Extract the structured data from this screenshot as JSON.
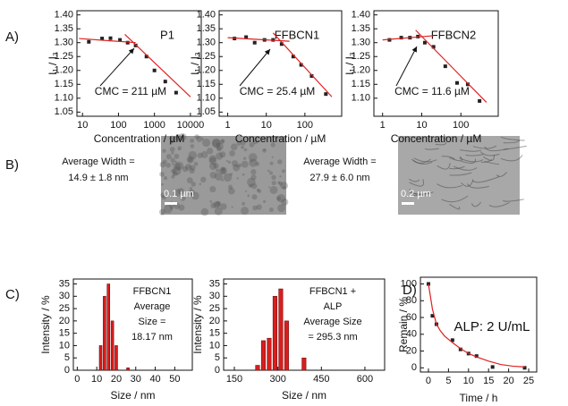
{
  "panel_labels": [
    "A)",
    "B)",
    "C)",
    "D)"
  ],
  "panel_b": {
    "items": [
      {
        "caption": [
          "Average Width =",
          "14.9 ± 1.8 nm"
        ],
        "scale_bar": "0.1 µm"
      },
      {
        "caption": [
          "Average Width =",
          "27.9 ± 6.0 nm"
        ],
        "scale_bar": "0.2 µm"
      }
    ]
  },
  "chart_data": [
    {
      "type": "scatter",
      "xscale": "log",
      "xlim": [
        7,
        20000
      ],
      "ylim": [
        1.035,
        1.415
      ],
      "xticks": [
        10,
        100,
        1000,
        10000
      ],
      "yticks": [
        1.05,
        {
          "value": 1.1,
          "label": "1.10"
        },
        1.15,
        {
          "value": 1.2,
          "label": "1.20"
        },
        1.25,
        {
          "value": 1.3,
          "label": "1.30"
        },
        1.35,
        {
          "value": 1.4,
          "label": "1.40"
        }
      ],
      "xlabel": "Concentration / µM",
      "ylabel": "I₁ / I₃",
      "annotations": [
        "P1",
        "CMC = 211 µM"
      ],
      "series": [
        {
          "style": "markers",
          "color": "#222222",
          "x": [
            15,
            35,
            60,
            110,
            180,
            300,
            600,
            1000,
            2000,
            4000
          ],
          "values": [
            1.303,
            1.315,
            1.316,
            1.31,
            1.3,
            1.29,
            1.25,
            1.2,
            1.16,
            1.12
          ]
        },
        {
          "style": "line",
          "color": "#e02020",
          "x": [
            8,
            300
          ],
          "values": [
            1.315,
            1.3
          ]
        },
        {
          "style": "line",
          "color": "#e02020",
          "x": [
            150,
            10000
          ],
          "values": [
            1.33,
            1.105
          ]
        }
      ]
    },
    {
      "type": "scatter",
      "xscale": "log",
      "xlim": [
        0.6,
        900
      ],
      "ylim": [
        1.035,
        1.415
      ],
      "xticks": [
        1,
        10,
        100
      ],
      "yticks": [
        1.05,
        {
          "value": 1.1,
          "label": "1.10"
        },
        1.15,
        {
          "value": 1.2,
          "label": "1.20"
        },
        1.25,
        {
          "value": 1.3,
          "label": "1.30"
        },
        1.35,
        {
          "value": 1.4,
          "label": "1.40"
        }
      ],
      "xlabel": "Concentration / µM",
      "ylabel": "I₁ / I₃",
      "annotations": [
        "FFBCN1",
        "CMC = 25.4 µM"
      ],
      "series": [
        {
          "style": "markers",
          "color": "#222222",
          "x": [
            1.5,
            3,
            5,
            9,
            15,
            25,
            50,
            80,
            150,
            350
          ],
          "values": [
            1.315,
            1.32,
            1.3,
            1.31,
            1.31,
            1.295,
            1.25,
            1.22,
            1.18,
            1.115
          ]
        },
        {
          "style": "line",
          "color": "#e02020",
          "x": [
            1,
            40
          ],
          "values": [
            1.318,
            1.305
          ]
        },
        {
          "style": "line",
          "color": "#e02020",
          "x": [
            15,
            500
          ],
          "values": [
            1.335,
            1.105
          ]
        }
      ]
    },
    {
      "type": "scatter",
      "xscale": "log",
      "xlim": [
        0.6,
        900
      ],
      "ylim": [
        1.035,
        1.415
      ],
      "xticks": [
        1,
        10,
        100
      ],
      "yticks": [
        {
          "value": 1.1,
          "label": "1.10"
        },
        1.15,
        {
          "value": 1.2,
          "label": "1.20"
        },
        1.25,
        {
          "value": 1.3,
          "label": "1.30"
        },
        1.35,
        {
          "value": 1.4,
          "label": "1.40"
        }
      ],
      "xlabel": "Concentration / µM",
      "ylabel": "I₁ / I₃",
      "annotations": [
        "FFBCN2",
        "CMC = 11.6 µM"
      ],
      "series": [
        {
          "style": "markers",
          "color": "#222222",
          "x": [
            1.5,
            3,
            5,
            8,
            12,
            20,
            40,
            80,
            150,
            300
          ],
          "values": [
            1.31,
            1.318,
            1.318,
            1.322,
            1.3,
            1.285,
            1.215,
            1.155,
            1.15,
            1.09
          ]
        },
        {
          "style": "line",
          "color": "#e02020",
          "x": [
            1,
            20
          ],
          "values": [
            1.31,
            1.325
          ]
        },
        {
          "style": "line",
          "color": "#e02020",
          "x": [
            7,
            450
          ],
          "values": [
            1.345,
            1.085
          ]
        }
      ]
    },
    {
      "type": "histogram",
      "xlim": [
        -2,
        59
      ],
      "ylim": [
        0,
        37
      ],
      "xticks": [
        0,
        10,
        20,
        30,
        40,
        50
      ],
      "yticks": [
        0,
        5,
        10,
        15,
        20,
        25,
        30,
        35
      ],
      "xlabel": "Size / nm",
      "ylabel": "Intensity / %",
      "color": "#d81e1e",
      "annotations": [
        "FFBCN1",
        "Average",
        "Size =",
        "18.17 nm"
      ],
      "bins": [
        11,
        13,
        15,
        17,
        19,
        21,
        23,
        25,
        27
      ],
      "values": [
        10,
        30,
        35,
        20,
        10,
        0,
        0,
        1
      ]
    },
    {
      "type": "histogram",
      "xlim": [
        113,
        668
      ],
      "ylim": [
        0,
        37
      ],
      "xticks": [
        150,
        300,
        450,
        600
      ],
      "yticks": [
        0,
        5,
        10,
        15,
        20,
        25,
        30,
        35
      ],
      "xlabel": "Size / nm",
      "ylabel": "Intensity / %",
      "color": "#d81e1e",
      "annotations": [
        "FFBCN1 +",
        "ALP",
        "Average Size",
        "= 295.3 nm"
      ],
      "bins": [
        220,
        240,
        260,
        280,
        300,
        320,
        340,
        360,
        380,
        400
      ],
      "values": [
        2,
        12,
        13,
        30,
        33,
        20,
        0,
        0,
        5
      ]
    },
    {
      "type": "scatter",
      "xlim": [
        -2,
        27
      ],
      "ylim": [
        -5,
        108
      ],
      "xticks": [
        0,
        5,
        10,
        15,
        20,
        25
      ],
      "yticks": [
        0,
        20,
        40,
        60,
        80,
        100
      ],
      "xlabel": "Time / h",
      "ylabel": "Remain / %",
      "annotations": [
        "ALP: 2 U/mL"
      ],
      "series": [
        {
          "style": "markers",
          "color": "#222222",
          "x": [
            0,
            1,
            2,
            6,
            8,
            10,
            12,
            16,
            24
          ],
          "values": [
            100,
            62,
            52,
            33,
            22,
            17,
            14,
            1,
            0
          ]
        },
        {
          "style": "line",
          "color": "#e02020",
          "x": [
            0,
            1,
            2,
            3,
            4,
            6,
            8,
            10,
            12,
            15,
            18,
            21,
            24
          ],
          "values": [
            100,
            70,
            52,
            44,
            38,
            30,
            23,
            17,
            13,
            8,
            4,
            2,
            1
          ]
        }
      ]
    }
  ]
}
